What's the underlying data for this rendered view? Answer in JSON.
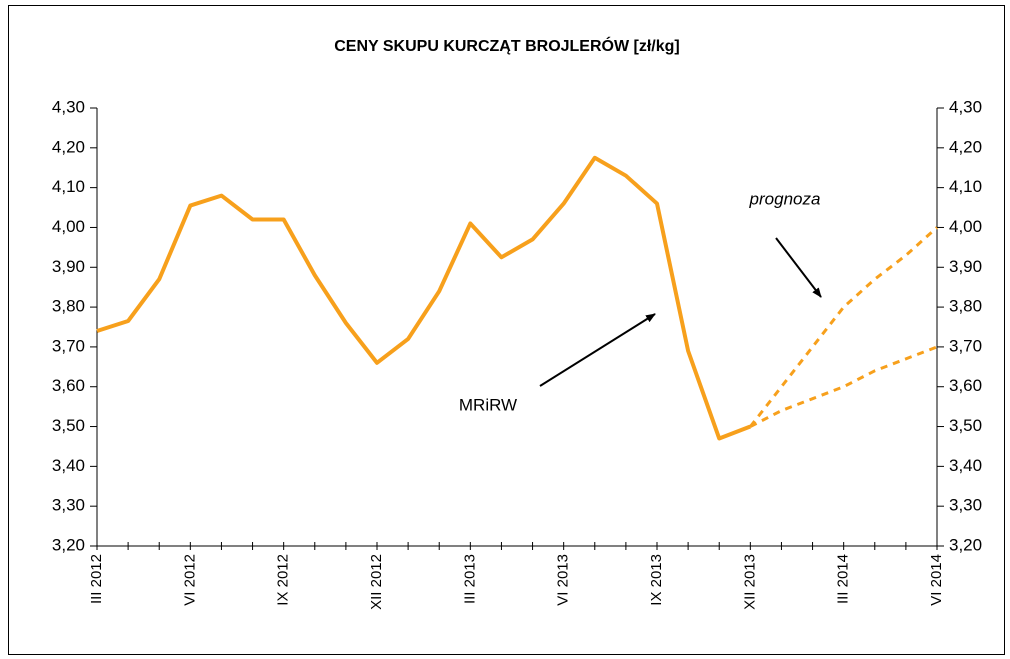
{
  "chart_data": {
    "type": "line",
    "title": "CENY SKUPU KURCZĄT BROJLERÓW [zł/kg]",
    "annotations": [
      "prognoza",
      "MRiRW"
    ],
    "categories": [
      "III 2012",
      null,
      null,
      "VI 2012",
      null,
      null,
      "IX 2012",
      null,
      null,
      "XII 2012",
      null,
      null,
      "III 2013",
      null,
      null,
      "VI 2013",
      null,
      null,
      "IX 2013",
      null,
      null,
      "XII 2013",
      null,
      null,
      "III 2014",
      null,
      null,
      "VI 2014"
    ],
    "series": [
      {
        "color": "#f7a01c",
        "line_style": "solid",
        "values": [
          3.74,
          3.765,
          3.87,
          4.055,
          4.08,
          4.02,
          4.02,
          3.88,
          3.76,
          3.66,
          3.72,
          3.84,
          4.01,
          3.925,
          3.97,
          4.06,
          4.175,
          4.13,
          4.06,
          3.69,
          3.47,
          3.5,
          null,
          null,
          null,
          null,
          null,
          null
        ]
      },
      {
        "color": "#f7a01c",
        "line_style": "dashed",
        "values": [
          null,
          null,
          null,
          null,
          null,
          null,
          null,
          null,
          null,
          null,
          null,
          null,
          null,
          null,
          null,
          null,
          null,
          null,
          null,
          null,
          null,
          3.5,
          3.6,
          3.7,
          3.8,
          3.87,
          3.93,
          4.0
        ]
      },
      {
        "color": "#f7a01c",
        "line_style": "dashed",
        "values": [
          null,
          null,
          null,
          null,
          null,
          null,
          null,
          null,
          null,
          null,
          null,
          null,
          null,
          null,
          null,
          null,
          null,
          null,
          null,
          null,
          null,
          3.5,
          3.54,
          3.57,
          3.6,
          3.64,
          3.67,
          3.7
        ]
      }
    ],
    "ylim": [
      3.2,
      4.3
    ],
    "yticks": [
      {
        "value": 3.2,
        "label": "3,20"
      },
      {
        "value": 3.3,
        "label": "3,30"
      },
      {
        "value": 3.4,
        "label": "3,40"
      },
      {
        "value": 3.5,
        "label": "3,50"
      },
      {
        "value": 3.6,
        "label": "3,60"
      },
      {
        "value": 3.7,
        "label": "3,70"
      },
      {
        "value": 3.8,
        "label": "3,80"
      },
      {
        "value": 3.9,
        "label": "3,90"
      },
      {
        "value": 4.0,
        "label": "4,00"
      },
      {
        "value": 4.1,
        "label": "4,10"
      },
      {
        "value": 4.2,
        "label": "4,20"
      },
      {
        "value": 4.3,
        "label": "4,30"
      }
    ],
    "y2lim": [
      3.2,
      4.3
    ],
    "y2ticks": [
      {
        "value": 3.2,
        "label": "3,20"
      },
      {
        "value": 3.3,
        "label": "3,30"
      },
      {
        "value": 3.4,
        "label": "3,40"
      },
      {
        "value": 3.5,
        "label": "3,50"
      },
      {
        "value": 3.6,
        "label": "3,60"
      },
      {
        "value": 3.7,
        "label": "3,70"
      },
      {
        "value": 3.8,
        "label": "3,80"
      },
      {
        "value": 3.9,
        "label": "3,90"
      },
      {
        "value": 4.0,
        "label": "4,00"
      },
      {
        "value": 4.1,
        "label": "4,10"
      },
      {
        "value": 4.2,
        "label": "4,20"
      },
      {
        "value": 4.3,
        "label": "4,30"
      }
    ],
    "grid": false
  }
}
